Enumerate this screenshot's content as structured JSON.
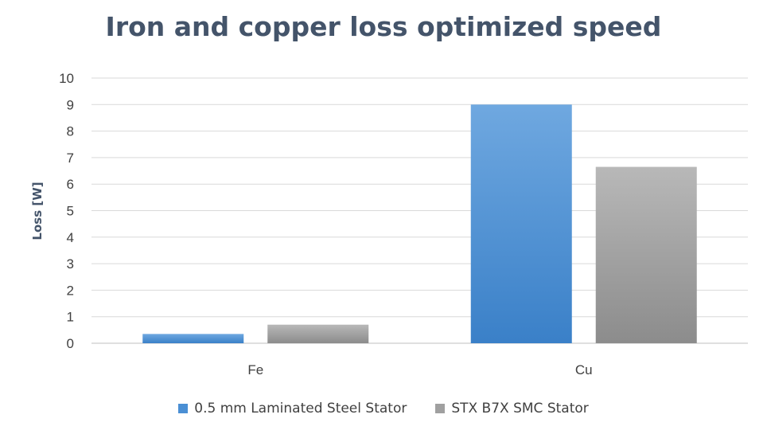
{
  "chart_data": {
    "type": "bar",
    "title": "Iron and copper loss optimized speed",
    "xlabel": "",
    "ylabel": "Loss [W]",
    "ylim": [
      0,
      10
    ],
    "yticks": [
      "0",
      "1",
      "2",
      "3",
      "4",
      "5",
      "6",
      "7",
      "8",
      "9",
      "10"
    ],
    "grid": true,
    "legend_position": "bottom",
    "categories": [
      "Fe",
      "Cu"
    ],
    "series": [
      {
        "name": "0.5 mm Laminated Steel Stator",
        "values": [
          0.35,
          9.0
        ],
        "color": "#4a8fd4"
      },
      {
        "name": "STX B7X SMC Stator",
        "values": [
          0.7,
          6.65
        ],
        "color": "#a0a0a0"
      }
    ]
  }
}
